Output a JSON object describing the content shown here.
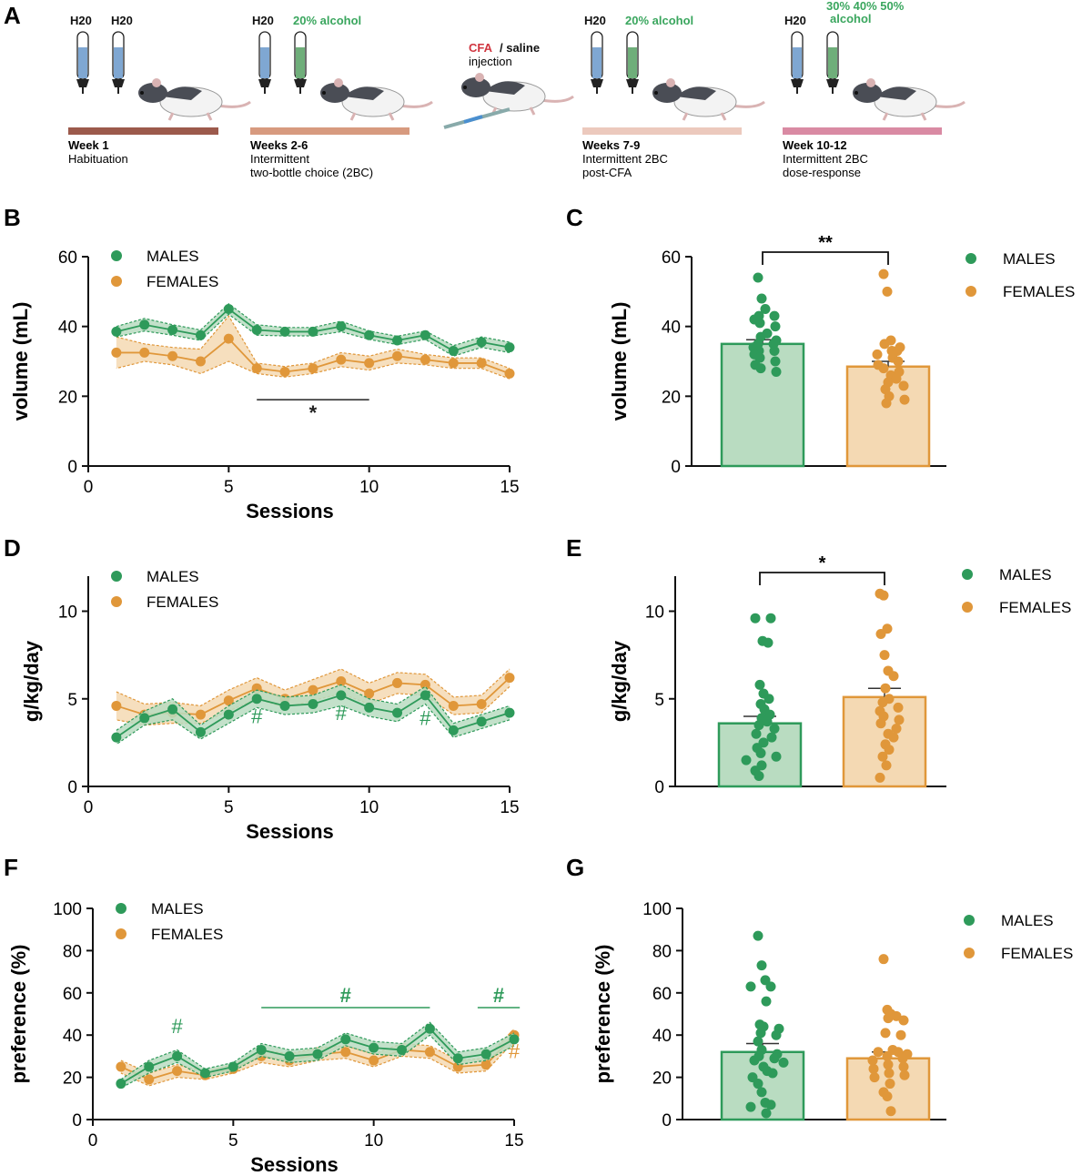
{
  "colors": {
    "males": "#2e9a5a",
    "males_fill": "#b9dcc1",
    "females": "#e0973a",
    "females_fill": "#f4d9b3",
    "water_bottle": "#7fa7d2",
    "alcohol_bottle": "#6fae7a",
    "alcohol_text": "#3aa65e",
    "cfa_text": "#d0353f",
    "bar1": "#9c5a4c",
    "bar2": "#d79a7f",
    "bar3": "#ecc9bd",
    "bar4": "#d98aa3"
  },
  "panel_a": {
    "letter": "A",
    "stages": [
      {
        "bottles": [
          "H20",
          "H20"
        ],
        "top_note": "",
        "week": "Week 1",
        "desc": [
          "Habituation"
        ]
      },
      {
        "bottles": [
          "H20",
          "20% alcohol"
        ],
        "top_note": "",
        "week": "Weeks 2-6",
        "desc": [
          "Intermittent",
          "two-bottle choice (2BC)"
        ]
      },
      {
        "bottles": [
          "H20",
          "20% alcohol"
        ],
        "top_note": "",
        "week": "Weeks 7-9",
        "desc": [
          "Intermittent 2BC",
          "post-CFA"
        ]
      },
      {
        "bottles": [
          "H20",
          "alcohol"
        ],
        "top_note": "30% 40% 50%",
        "week": "Week 10-12",
        "desc": [
          "Intermittent 2BC",
          "dose-response"
        ]
      }
    ],
    "injection": {
      "cfa": "CFA",
      "rest": " / saline",
      "line2": "injection"
    }
  },
  "legend": {
    "males": "MALES",
    "females": "FEMALES"
  },
  "chart_data": [
    {
      "id": "B",
      "type": "line",
      "xlabel": "Sessions",
      "ylabel": "volume (mL)",
      "xlim": [
        0,
        15
      ],
      "ylim": [
        0,
        60
      ],
      "xticks": [
        0,
        5,
        10,
        15
      ],
      "yticks": [
        0,
        20,
        40,
        60
      ],
      "x": [
        1,
        2,
        3,
        4,
        5,
        6,
        7,
        8,
        9,
        10,
        11,
        12,
        13,
        14,
        15
      ],
      "series": [
        {
          "name": "MALES",
          "values": [
            38.5,
            40.5,
            39,
            37.5,
            45,
            39,
            38.5,
            38.5,
            40,
            37.5,
            36,
            37.5,
            33,
            35.5,
            34
          ],
          "sem": [
            1.5,
            1.8,
            1.5,
            1.5,
            1.5,
            1.5,
            1.2,
            1.2,
            1.5,
            1.2,
            1.2,
            1.2,
            1.5,
            1.5,
            1.5
          ]
        },
        {
          "name": "FEMALES",
          "values": [
            32.5,
            32.5,
            31.5,
            30,
            36.5,
            28,
            27,
            28,
            30.5,
            29.5,
            31.5,
            30.5,
            29.5,
            29.5,
            26.5
          ],
          "sem": [
            4.5,
            2.5,
            2.5,
            3.5,
            6.5,
            1.5,
            1.5,
            1.5,
            2,
            2,
            2,
            1.5,
            1.5,
            1.5,
            1.5
          ]
        }
      ],
      "annotations": [
        {
          "text": "*",
          "x_from": 6,
          "x_to": 10,
          "y": 19,
          "color": "#222"
        }
      ]
    },
    {
      "id": "C",
      "type": "bar",
      "ylabel": "volume (mL)",
      "ylim": [
        0,
        60
      ],
      "yticks": [
        0,
        20,
        40,
        60
      ],
      "categories": [
        "MALES",
        "FEMALES"
      ],
      "values": [
        35,
        28.5
      ],
      "sem": [
        1.2,
        1.5
      ],
      "points": [
        [
          54,
          48,
          45,
          43,
          43,
          42,
          41,
          40,
          38,
          37,
          36,
          35,
          35,
          34,
          33,
          33,
          32,
          31,
          30,
          29,
          28,
          27
        ],
        [
          55,
          50,
          36,
          35,
          34,
          33,
          33,
          32,
          31,
          30,
          29,
          28,
          27,
          26,
          25,
          24,
          23,
          22,
          20,
          19,
          18
        ]
      ],
      "significance": "**"
    },
    {
      "id": "D",
      "type": "line",
      "xlabel": "Sessions",
      "ylabel": "g/kg/day",
      "xlim": [
        0,
        15
      ],
      "ylim": [
        0,
        12
      ],
      "xticks": [
        0,
        5,
        10,
        15
      ],
      "yticks": [
        0,
        5,
        10
      ],
      "x": [
        1,
        2,
        3,
        4,
        5,
        6,
        7,
        8,
        9,
        10,
        11,
        12,
        13,
        14,
        15
      ],
      "series": [
        {
          "name": "MALES",
          "values": [
            2.8,
            3.9,
            4.4,
            3.1,
            4.1,
            5.0,
            4.6,
            4.7,
            5.2,
            4.5,
            4.2,
            5.2,
            3.2,
            3.7,
            4.2
          ],
          "sem": [
            0.4,
            0.4,
            0.6,
            0.4,
            0.5,
            0.5,
            0.5,
            0.5,
            0.6,
            0.5,
            0.5,
            0.5,
            0.4,
            0.4,
            0.4
          ]
        },
        {
          "name": "FEMALES",
          "values": [
            4.6,
            4.1,
            4.2,
            4.1,
            4.9,
            5.6,
            5.0,
            5.5,
            6.0,
            5.3,
            5.9,
            5.8,
            4.6,
            4.7,
            6.2
          ],
          "sem": [
            0.8,
            0.6,
            0.6,
            0.5,
            0.6,
            0.6,
            0.5,
            0.6,
            0.7,
            0.6,
            0.6,
            0.6,
            0.5,
            0.5,
            0.5
          ]
        }
      ],
      "annotations": [
        {
          "text": "#",
          "x": 6,
          "y": 3.6,
          "color": "#2e9a5a"
        },
        {
          "text": "#",
          "x": 9,
          "y": 3.8,
          "color": "#2e9a5a"
        },
        {
          "text": "#",
          "x": 12,
          "y": 3.5,
          "color": "#2e9a5a"
        }
      ]
    },
    {
      "id": "E",
      "type": "bar",
      "ylabel": "g/kg/day",
      "ylim": [
        0,
        12
      ],
      "yticks": [
        0,
        5,
        10
      ],
      "categories": [
        "MALES",
        "FEMALES"
      ],
      "values": [
        3.6,
        5.1
      ],
      "sem": [
        0.4,
        0.5
      ],
      "points": [
        [
          9.6,
          9.6,
          8.3,
          8.2,
          5.8,
          5.3,
          5.0,
          4.7,
          4.4,
          4.1,
          3.9,
          3.7,
          3.5,
          3.3,
          3.0,
          2.8,
          2.5,
          2.2,
          1.9,
          1.7,
          1.5,
          1.2,
          0.9,
          0.6
        ],
        [
          11.0,
          10.9,
          9.0,
          8.7,
          7.5,
          6.6,
          6.3,
          5.6,
          5.0,
          4.8,
          4.5,
          4.3,
          4.0,
          3.8,
          3.6,
          3.3,
          3.0,
          2.8,
          2.4,
          2.1,
          1.7,
          1.2,
          0.5
        ]
      ],
      "significance": "*"
    },
    {
      "id": "F",
      "type": "line",
      "xlabel": "Sessions",
      "ylabel": "preference (%)",
      "xlim": [
        0,
        15
      ],
      "ylim": [
        0,
        100
      ],
      "xticks": [
        0,
        5,
        10,
        15
      ],
      "yticks": [
        0,
        20,
        40,
        60,
        80,
        100
      ],
      "x": [
        1,
        2,
        3,
        4,
        5,
        6,
        7,
        8,
        9,
        10,
        11,
        12,
        13,
        14,
        15
      ],
      "series": [
        {
          "name": "MALES",
          "values": [
            17,
            25,
            30,
            22,
            25,
            33,
            30,
            31,
            38,
            34,
            33,
            43,
            29,
            31,
            38
          ],
          "sem": [
            2,
            3,
            3,
            2,
            2,
            3,
            3,
            3,
            3,
            3,
            3,
            3,
            3,
            3,
            3
          ]
        },
        {
          "name": "FEMALES",
          "values": [
            25,
            19,
            23,
            21,
            24,
            30,
            28,
            31,
            32,
            28,
            33,
            32,
            25,
            26,
            40
          ],
          "sem": [
            3,
            3,
            3,
            2,
            2,
            3,
            3,
            3,
            3,
            3,
            3,
            3,
            3,
            3,
            3
          ]
        }
      ],
      "annotations": [
        {
          "text": "#",
          "x": 3,
          "y": 41,
          "color": "#2e9a5a"
        },
        {
          "text": "#",
          "x_from": 6,
          "x_to": 12,
          "y": 53,
          "color": "#2e9a5a"
        },
        {
          "text": "#",
          "x_from": 13.7,
          "x_to": 15.2,
          "y": 53,
          "color": "#2e9a5a"
        },
        {
          "text": "#",
          "x": 15,
          "y": 29,
          "color": "#e0973a"
        }
      ]
    },
    {
      "id": "G",
      "type": "bar",
      "ylabel": "preference (%)",
      "ylim": [
        0,
        100
      ],
      "yticks": [
        0,
        20,
        40,
        60,
        80,
        100
      ],
      "categories": [
        "MALES",
        "FEMALES"
      ],
      "values": [
        32,
        29
      ],
      "sem": [
        4,
        3
      ],
      "points": [
        [
          87,
          73,
          66,
          63,
          63,
          56,
          45,
          44,
          43,
          41,
          40,
          37,
          33,
          31,
          30,
          29,
          28,
          27,
          25,
          23,
          22,
          20,
          17,
          13,
          8,
          7,
          6,
          3
        ],
        [
          76,
          52,
          50,
          49,
          48,
          47,
          41,
          40,
          33,
          32,
          32,
          31,
          30,
          29,
          28,
          26,
          25,
          24,
          22,
          21,
          20,
          17,
          13,
          11,
          4
        ]
      ],
      "significance": ""
    }
  ]
}
